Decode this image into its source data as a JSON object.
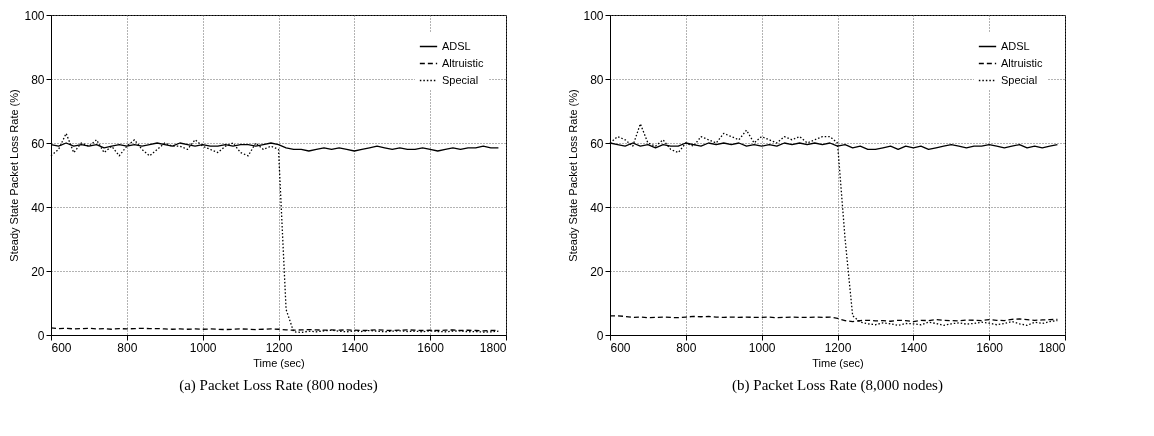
{
  "chart_data": [
    {
      "type": "line",
      "title": "(a) Packet Loss Rate (800 nodes)",
      "xlabel": "Time (sec)",
      "ylabel": "Steady State Packet Loss Rate (%)",
      "x": [
        600,
        620,
        640,
        660,
        680,
        700,
        720,
        740,
        760,
        780,
        800,
        820,
        840,
        860,
        880,
        900,
        920,
        940,
        960,
        980,
        1000,
        1020,
        1040,
        1060,
        1080,
        1100,
        1120,
        1140,
        1160,
        1180,
        1200,
        1220,
        1240,
        1260,
        1280,
        1300,
        1320,
        1340,
        1360,
        1380,
        1400,
        1420,
        1440,
        1460,
        1480,
        1500,
        1520,
        1540,
        1560,
        1580,
        1600,
        1620,
        1640,
        1660,
        1680,
        1700,
        1720,
        1740,
        1760,
        1780
      ],
      "series": [
        {
          "name": "ADSL",
          "color": "#000000",
          "line_style": "solid",
          "values": [
            59.5,
            59,
            60,
            59,
            59.5,
            59,
            59.5,
            58.5,
            59,
            59.5,
            59,
            59.5,
            59,
            59.5,
            60,
            59.5,
            59,
            60,
            59.5,
            59,
            59.5,
            59,
            59,
            59.5,
            59,
            59.5,
            59.5,
            59,
            59.5,
            60,
            59.5,
            58.5,
            58,
            58,
            57.5,
            58,
            58.5,
            58,
            58.5,
            58,
            57.5,
            58,
            58.5,
            59,
            58.5,
            58,
            58.5,
            58,
            58,
            58.5,
            58,
            57.5,
            58,
            58.5,
            58,
            58.5,
            58.5,
            59,
            58.5,
            58.5
          ]
        },
        {
          "name": "Altruistic",
          "color": "#000000",
          "line_style": "dashed",
          "values": [
            2.2,
            2,
            2.1,
            1.9,
            2,
            2.1,
            1.9,
            2,
            1.8,
            2,
            1.9,
            2,
            2.1,
            2,
            2,
            1.9,
            1.8,
            1.9,
            1.8,
            1.9,
            1.8,
            1.9,
            1.8,
            1.7,
            1.8,
            1.9,
            1.8,
            1.7,
            1.8,
            1.9,
            1.8,
            1.6,
            1.5,
            1.6,
            1.7,
            1.6,
            1.5,
            1.6,
            1.5,
            1.6,
            1.5,
            1.4,
            1.5,
            1.6,
            1.5,
            1.4,
            1.5,
            1.6,
            1.5,
            1.4,
            1.5,
            1.4,
            1.5,
            1.6,
            1.4,
            1.5,
            1.4,
            1.3,
            1.4,
            1.5
          ]
        },
        {
          "name": "Special",
          "color": "#000000",
          "line_style": "dotted",
          "values": [
            56,
            58,
            63,
            57,
            60,
            59,
            61,
            57,
            59,
            56,
            59,
            61,
            58,
            56,
            58,
            60,
            59,
            59,
            58,
            61,
            59,
            58,
            57,
            59,
            60,
            57,
            56,
            60,
            58,
            59,
            58,
            8,
            1,
            0.8,
            1.2,
            1,
            1.3,
            1.5,
            1.2,
            1,
            1.3,
            1.1,
            1.4,
            1.2,
            1,
            1.2,
            1.3,
            1.1,
            1.2,
            1,
            1.3,
            1.1,
            1,
            1.2,
            1.3,
            1,
            1.1,
            0.9,
            1,
            1.2
          ]
        }
      ],
      "xlim": [
        600,
        1800
      ],
      "xticks": [
        600,
        800,
        1000,
        1200,
        1400,
        1600,
        1800
      ],
      "ylim": [
        0,
        100
      ],
      "yticks": [
        0,
        20,
        40,
        60,
        80,
        100
      ],
      "grid": true,
      "legend": "top right"
    },
    {
      "type": "line",
      "title": "(b) Packet Loss Rate (8,000 nodes)",
      "xlabel": "Time (sec)",
      "ylabel": "Steady State Packet Loss Rate (%)",
      "x": [
        600,
        620,
        640,
        660,
        680,
        700,
        720,
        740,
        760,
        780,
        800,
        820,
        840,
        860,
        880,
        900,
        920,
        940,
        960,
        980,
        1000,
        1020,
        1040,
        1060,
        1080,
        1100,
        1120,
        1140,
        1160,
        1180,
        1200,
        1220,
        1240,
        1260,
        1280,
        1300,
        1320,
        1340,
        1360,
        1380,
        1400,
        1420,
        1440,
        1460,
        1480,
        1500,
        1520,
        1540,
        1560,
        1580,
        1600,
        1620,
        1640,
        1660,
        1680,
        1700,
        1720,
        1740,
        1760,
        1780
      ],
      "series": [
        {
          "name": "ADSL",
          "color": "#000000",
          "line_style": "solid",
          "values": [
            60,
            59.5,
            59,
            60,
            59,
            59.5,
            58.5,
            59.5,
            59,
            59,
            60,
            59.5,
            59,
            60,
            59.5,
            60,
            59.5,
            60,
            59,
            59.5,
            59,
            59.5,
            59,
            60,
            59.5,
            60,
            59.5,
            60,
            59.5,
            60,
            59,
            59.5,
            58.5,
            59,
            58,
            58,
            58.5,
            59,
            58,
            59,
            58.5,
            59,
            58,
            58.5,
            59,
            59.5,
            59,
            58.5,
            59,
            59,
            59.5,
            59,
            58.5,
            59,
            59.5,
            58.5,
            59,
            58.5,
            59,
            59.5
          ]
        },
        {
          "name": "Altruistic",
          "color": "#000000",
          "line_style": "dashed",
          "values": [
            6,
            6,
            5.8,
            5.5,
            5.6,
            5.4,
            5.5,
            5.6,
            5.5,
            5.4,
            5.6,
            5.8,
            5.7,
            5.8,
            5.6,
            5.5,
            5.6,
            5.5,
            5.6,
            5.5,
            5.5,
            5.6,
            5.4,
            5.5,
            5.6,
            5.5,
            5.5,
            5.6,
            5.5,
            5.6,
            5.2,
            4.5,
            4.2,
            4.5,
            4.6,
            4.4,
            4.5,
            4.3,
            4.6,
            4.5,
            4.2,
            4.6,
            4.5,
            4.8,
            4.6,
            4.5,
            4.4,
            4.7,
            4.6,
            4.5,
            4.8,
            4.6,
            4.5,
            4.9,
            5,
            4.8,
            4.6,
            4.7,
            4.8,
            4.9
          ]
        },
        {
          "name": "Special",
          "color": "#000000",
          "line_style": "dotted",
          "values": [
            60,
            62,
            61,
            59,
            66,
            60,
            59,
            61,
            58,
            57,
            60,
            59,
            62,
            61,
            60,
            63,
            62,
            61,
            64,
            60,
            62,
            61,
            60,
            62,
            61,
            62,
            60,
            61,
            62,
            62,
            60,
            30,
            6,
            4,
            3.5,
            3.2,
            3.8,
            3.5,
            3,
            3.6,
            3.5,
            3.2,
            4,
            3.6,
            3,
            3.5,
            3.8,
            3.4,
            3.6,
            4,
            3.7,
            3.2,
            3.6,
            4.2,
            3.5,
            3,
            4,
            3.6,
            4.2,
            4.5
          ]
        }
      ],
      "xlim": [
        600,
        1800
      ],
      "xticks": [
        600,
        800,
        1000,
        1200,
        1400,
        1600,
        1800
      ],
      "ylim": [
        0,
        100
      ],
      "yticks": [
        0,
        20,
        40,
        60,
        80,
        100
      ],
      "grid": true,
      "legend": "top right"
    }
  ]
}
